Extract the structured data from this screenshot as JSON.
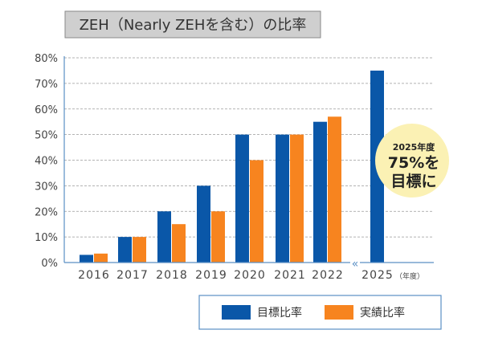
{
  "chart_data": {
    "type": "bar",
    "title": "ZEH（Nearly ZEHを含む）の比率",
    "categories": [
      "2016",
      "2017",
      "2018",
      "2019",
      "2020",
      "2021",
      "2022",
      "2025"
    ],
    "x_unit_label": "（年度）",
    "yticks": [
      "0%",
      "10%",
      "20%",
      "30%",
      "40%",
      "50%",
      "60%",
      "70%",
      "80%"
    ],
    "ylim": [
      0,
      80
    ],
    "grid": true,
    "axis_break_between": [
      "2022",
      "2025"
    ],
    "legend_position": "bottom-right",
    "series": [
      {
        "name": "目標比率",
        "color": "#0a57a8",
        "values": [
          3,
          10,
          20,
          30,
          50,
          50,
          55,
          75
        ]
      },
      {
        "name": "実績比率",
        "color": "#f7841f",
        "values": [
          3.5,
          10,
          15,
          20,
          40,
          50,
          57,
          null
        ]
      }
    ],
    "annotation": {
      "line1": "2025年度",
      "line2": "75%を",
      "line3": "目標に",
      "color": "#fbf1b4"
    }
  }
}
